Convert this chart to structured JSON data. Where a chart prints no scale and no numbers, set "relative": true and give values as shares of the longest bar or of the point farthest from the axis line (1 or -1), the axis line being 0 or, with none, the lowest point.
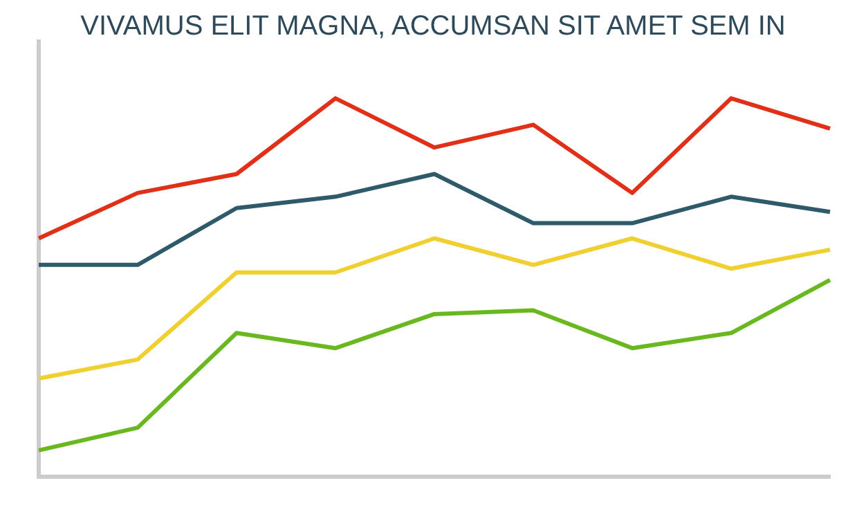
{
  "chart_data": {
    "type": "line",
    "title": "VIVAMUS ELIT MAGNA, ACCUMSAN SIT AMET SEM IN",
    "relative": true,
    "categories": [
      null,
      null,
      null,
      null,
      null,
      null,
      null,
      null,
      null
    ],
    "grid": false,
    "legend": false,
    "marker": "none",
    "line_style": "solid",
    "series": [
      {
        "color": "#e03018",
        "values": [
          0.63,
          0.75,
          0.8,
          1,
          0.87,
          0.93,
          0.75,
          1,
          0.92
        ]
      },
      {
        "color": "#2e5a6a",
        "values": [
          0.56,
          0.56,
          0.71,
          0.74,
          0.8,
          0.67,
          0.67,
          0.74,
          0.7
        ]
      },
      {
        "color": "#f0d030",
        "values": [
          0.26,
          0.31,
          0.54,
          0.54,
          0.63,
          0.56,
          0.63,
          0.55,
          0.6
        ]
      },
      {
        "color": "#6ab820",
        "values": [
          0.07,
          0.13,
          0.38,
          0.34,
          0.43,
          0.44,
          0.34,
          0.38,
          0.52
        ]
      }
    ]
  }
}
